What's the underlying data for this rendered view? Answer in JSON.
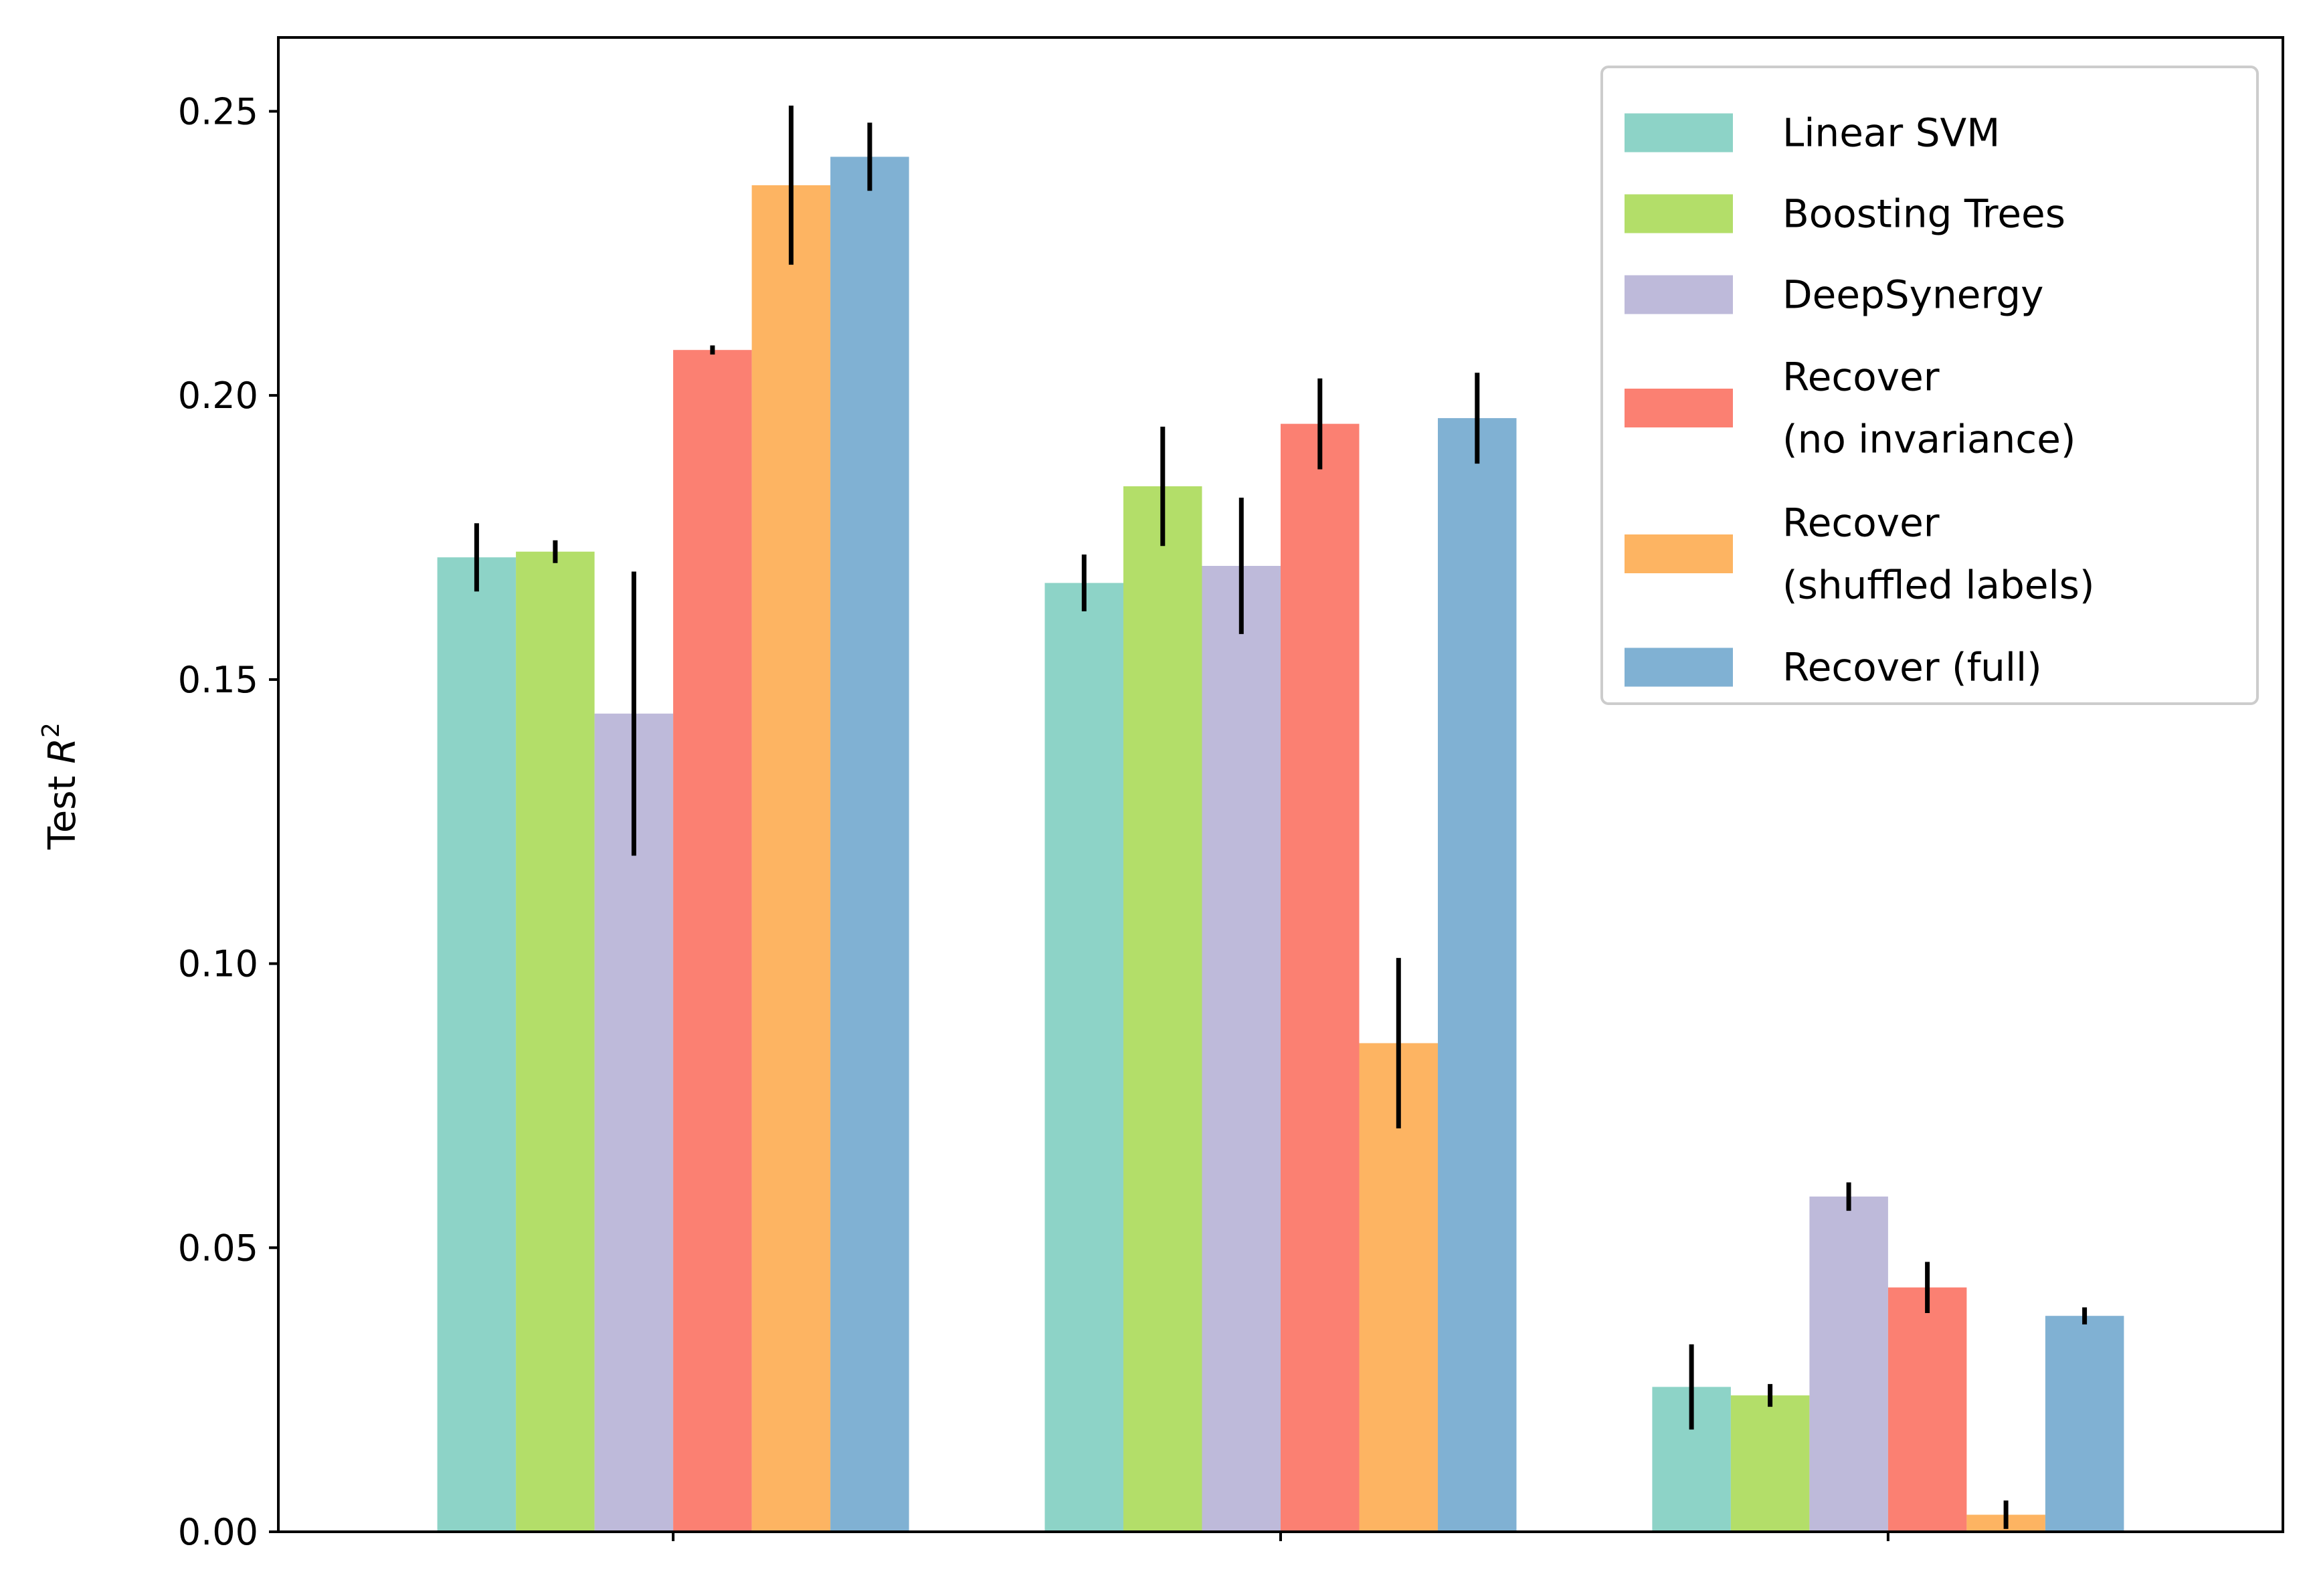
{
  "chart_data": {
    "type": "bar",
    "title": "",
    "xlabel": "",
    "ylabel_prefix": "Test ",
    "ylabel_symbol": "R",
    "ylabel_superscript": "2",
    "ylim": [
      0,
      0.263
    ],
    "yticks": [
      "0.00",
      "0.05",
      "0.10",
      "0.15",
      "0.20",
      "0.25"
    ],
    "ytick_values": [
      0,
      0.05,
      0.1,
      0.15,
      0.2,
      0.25
    ],
    "categories": [
      "",
      "",
      ""
    ],
    "grid": false,
    "legend_position": "top-right",
    "series": [
      {
        "name_lines": [
          "Linear SVM"
        ],
        "color": "#8dd3c7",
        "values": [
          0.1715,
          0.167,
          0.0255
        ],
        "errors": [
          0.006,
          0.005,
          0.0075
        ]
      },
      {
        "name_lines": [
          "Boosting Trees"
        ],
        "color": "#b3de69",
        "values": [
          0.1725,
          0.184,
          0.024
        ],
        "errors": [
          0.002,
          0.0105,
          0.002
        ]
      },
      {
        "name_lines": [
          "DeepSynergy"
        ],
        "color": "#bebada",
        "values": [
          0.144,
          0.17,
          0.059
        ],
        "errors": [
          0.025,
          0.012,
          0.0025
        ]
      },
      {
        "name_lines": [
          "Recover",
          "(no invariance)"
        ],
        "color": "#fb8072",
        "values": [
          0.208,
          0.195,
          0.043
        ],
        "errors": [
          0.0008,
          0.008,
          0.0045
        ]
      },
      {
        "name_lines": [
          "Recover",
          "(shuffled labels)"
        ],
        "color": "#fdb462",
        "values": [
          0.237,
          0.086,
          0.003
        ],
        "errors": [
          0.014,
          0.015,
          0.0025
        ]
      },
      {
        "name_lines": [
          "Recover (full)"
        ],
        "color": "#80b1d3",
        "values": [
          0.242,
          0.196,
          0.038
        ],
        "errors": [
          0.006,
          0.008,
          0.0015
        ]
      }
    ]
  }
}
